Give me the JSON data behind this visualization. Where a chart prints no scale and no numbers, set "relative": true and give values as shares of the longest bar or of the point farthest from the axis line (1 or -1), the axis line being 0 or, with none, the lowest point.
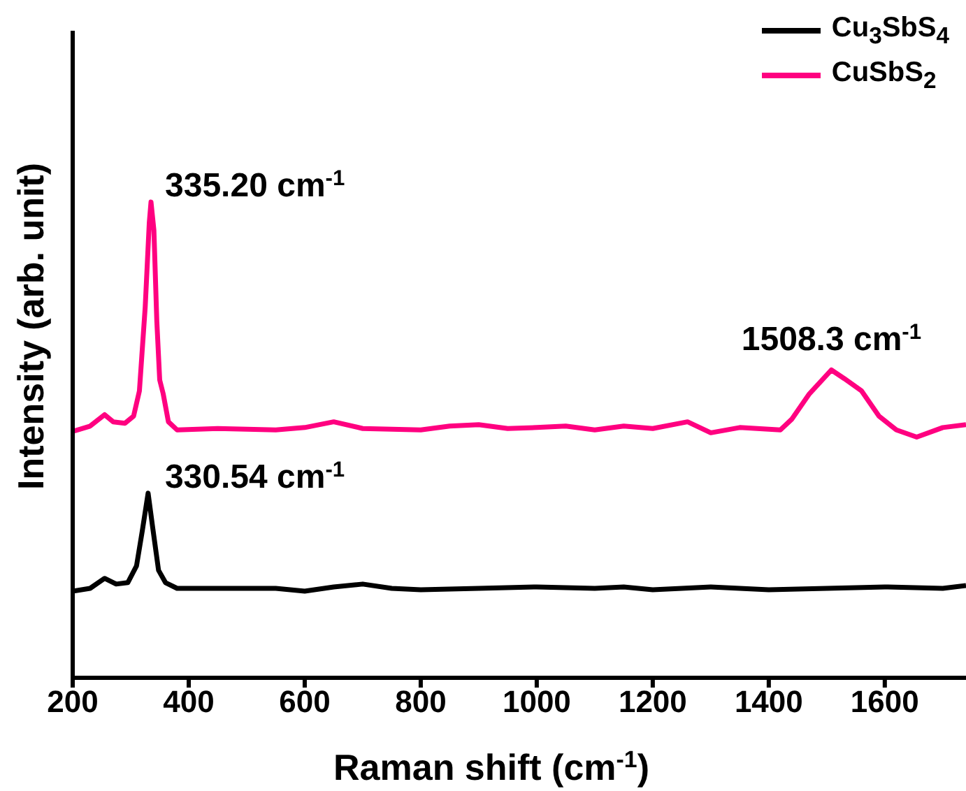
{
  "chart_data": {
    "type": "line",
    "relative": true,
    "xlabel": "Raman shift (cm$^{-1}$)",
    "ylabel": "Intensity (arb. unit)",
    "xlim": [
      200,
      1740
    ],
    "xticks": [
      200,
      400,
      600,
      800,
      1000,
      1200,
      1400,
      1600
    ],
    "legend": "top right",
    "line_style": "solid",
    "annotations": [
      {
        "text": "335.20 cm$^{-1}$",
        "x": 335,
        "y": 1
      },
      {
        "text": "330.54 cm$^{-1}$",
        "x": 330,
        "y": 0.388
      },
      {
        "text": "1508.3 cm$^{-1}$",
        "x": 1508,
        "y": 0.647
      }
    ],
    "series": [
      {
        "name": "Cu$_{3}$SbS$_{4}$",
        "color": "#000000",
        "x": [
          200,
          230,
          255,
          275,
          295,
          310,
          320,
          330,
          338,
          348,
          360,
          380,
          450,
          550,
          600,
          650,
          700,
          750,
          800,
          900,
          1000,
          1100,
          1150,
          1200,
          1300,
          1400,
          1500,
          1600,
          1700,
          1740
        ],
        "values": [
          0.182,
          0.188,
          0.209,
          0.197,
          0.2,
          0.235,
          0.309,
          0.388,
          0.315,
          0.226,
          0.2,
          0.188,
          0.188,
          0.188,
          0.182,
          0.191,
          0.197,
          0.188,
          0.185,
          0.188,
          0.191,
          0.188,
          0.191,
          0.185,
          0.191,
          0.185,
          0.188,
          0.191,
          0.188,
          0.194
        ]
      },
      {
        "name": "CuSbS$_{2}$",
        "color": "#ff0080",
        "x": [
          200,
          230,
          255,
          270,
          290,
          305,
          315,
          325,
          332,
          335,
          340,
          345,
          350,
          356,
          365,
          380,
          450,
          550,
          600,
          650,
          700,
          800,
          850,
          900,
          950,
          1000,
          1050,
          1100,
          1150,
          1200,
          1260,
          1300,
          1350,
          1420,
          1440,
          1470,
          1508,
          1530,
          1560,
          1590,
          1620,
          1655,
          1700,
          1740
        ],
        "values": [
          0.518,
          0.529,
          0.553,
          0.538,
          0.535,
          0.55,
          0.603,
          0.779,
          0.956,
          1,
          0.941,
          0.75,
          0.626,
          0.597,
          0.538,
          0.521,
          0.524,
          0.521,
          0.526,
          0.538,
          0.524,
          0.521,
          0.529,
          0.532,
          0.524,
          0.526,
          0.529,
          0.521,
          0.529,
          0.524,
          0.538,
          0.515,
          0.526,
          0.521,
          0.544,
          0.597,
          0.647,
          0.629,
          0.603,
          0.55,
          0.521,
          0.506,
          0.526,
          0.532
        ]
      }
    ]
  }
}
